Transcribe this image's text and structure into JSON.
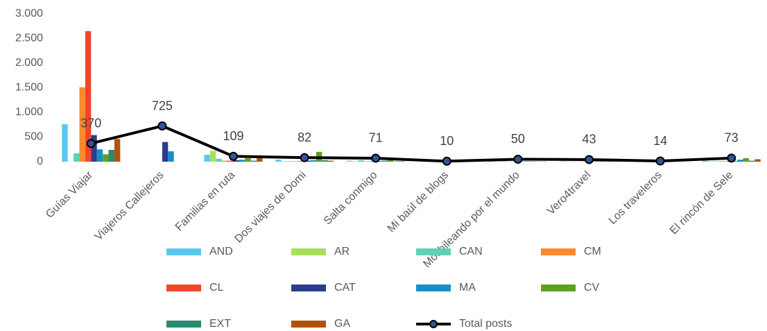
{
  "chart_data": {
    "type": "bar-line",
    "categories": [
      "Guías Viajar",
      "Viajeros Callejeros",
      "Familias en ruta",
      "Dos viajes de Domi",
      "Salta conmigo",
      "Mi baúl de blogs",
      "Mochileando por el mundo",
      "Vero4travel",
      "Los traveleros",
      "El rincón de  Sele"
    ],
    "series": [
      {
        "name": "AND",
        "color": "#5bc8f0",
        "type": "bar",
        "values": [
          760,
          0,
          140,
          40,
          20,
          0,
          10,
          10,
          5,
          20
        ]
      },
      {
        "name": "AR",
        "color": "#a6e05a",
        "type": "bar",
        "values": [
          0,
          0,
          220,
          10,
          10,
          0,
          5,
          5,
          0,
          10
        ]
      },
      {
        "name": "CAN",
        "color": "#5ed2b5",
        "type": "bar",
        "values": [
          170,
          0,
          60,
          10,
          30,
          0,
          10,
          5,
          0,
          10
        ]
      },
      {
        "name": "CM",
        "color": "#f98a2b",
        "type": "bar",
        "values": [
          1510,
          0,
          20,
          10,
          10,
          0,
          5,
          5,
          0,
          10
        ]
      },
      {
        "name": "CL",
        "color": "#f2462a",
        "type": "bar",
        "values": [
          2650,
          0,
          20,
          10,
          10,
          0,
          5,
          5,
          0,
          10
        ]
      },
      {
        "name": "CAT",
        "color": "#2c3d8a",
        "type": "bar",
        "values": [
          540,
          400,
          30,
          20,
          10,
          0,
          5,
          5,
          0,
          10
        ]
      },
      {
        "name": "MA",
        "color": "#1690c8",
        "type": "bar",
        "values": [
          250,
          210,
          40,
          30,
          20,
          0,
          10,
          10,
          5,
          40
        ]
      },
      {
        "name": "CV",
        "color": "#5ca11f",
        "type": "bar",
        "values": [
          150,
          0,
          70,
          200,
          30,
          0,
          10,
          10,
          5,
          70
        ]
      },
      {
        "name": "EXT",
        "color": "#2a8a6f",
        "type": "bar",
        "values": [
          240,
          0,
          20,
          30,
          10,
          0,
          5,
          5,
          0,
          20
        ]
      },
      {
        "name": "GA",
        "color": "#b0520e",
        "type": "bar",
        "values": [
          460,
          0,
          70,
          20,
          10,
          0,
          5,
          5,
          0,
          50
        ]
      },
      {
        "name": "Total posts",
        "color": "#000000",
        "marker_color": "#2f5597",
        "type": "line",
        "data_labels": true,
        "values": [
          370,
          725,
          109,
          82,
          71,
          10,
          50,
          43,
          14,
          73
        ]
      }
    ],
    "ylim": [
      0,
      3000
    ],
    "yticks": [
      0,
      500,
      {
        "value": 1000,
        "label": "1.000"
      },
      {
        "value": 1500,
        "label": "1.500"
      },
      {
        "value": 2000,
        "label": "2.000"
      },
      {
        "value": 2500,
        "label": "2.500"
      },
      {
        "value": 3000,
        "label": "3.000"
      }
    ],
    "grid": false,
    "legend": "bottom"
  }
}
